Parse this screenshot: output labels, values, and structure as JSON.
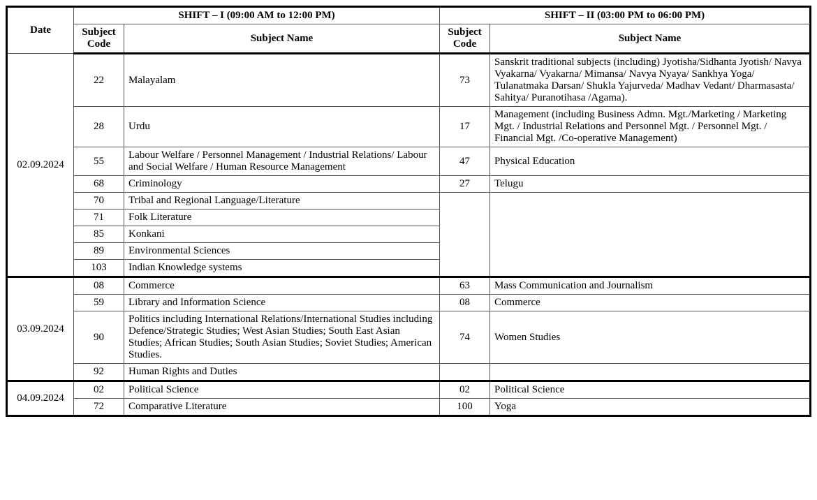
{
  "header": {
    "date": "Date",
    "shift1_title": "SHIFT – I (09:00 AM to 12:00 PM)",
    "shift2_title": "SHIFT – II (03:00 PM to 06:00 PM)",
    "subject_code": "Subject Code",
    "subject_name": "Subject Name"
  },
  "dates": {
    "d1": "02.09.2024",
    "d2": "03.09.2024",
    "d3": "04.09.2024"
  },
  "d1": {
    "r1": {
      "s1c": "22",
      "s1n": "Malayalam",
      "s2c": "73",
      "s2n": "Sanskrit traditional subjects (including) Jyotisha/Sidhanta Jyotish/ Navya Vyakarna/ Vyakarna/ Mimansa/ Navya Nyaya/ Sankhya Yoga/ Tulanatmaka Darsan/ Shukla Yajurveda/ Madhav Vedant/ Dharmasasta/ Sahitya/ Puranotihasa /Agama)."
    },
    "r2": {
      "s1c": "28",
      "s1n": "Urdu",
      "s2c": "17",
      "s2n": "Management (including Business Admn. Mgt./Marketing / Marketing Mgt. / Industrial Relations and Personnel Mgt. / Personnel Mgt. / Financial Mgt. /Co-operative Management)"
    },
    "r3": {
      "s1c": "55",
      "s1n": "Labour Welfare / Personnel Management / Industrial Relations/ Labour and Social Welfare / Human Resource Management",
      "s2c": "47",
      "s2n": "Physical Education"
    },
    "r4": {
      "s1c": "68",
      "s1n": "Criminology",
      "s2c": "27",
      "s2n": "Telugu"
    },
    "r5": {
      "s1c": "70",
      "s1n": "Tribal and Regional Language/Literature"
    },
    "r6": {
      "s1c": "71",
      "s1n": "Folk Literature"
    },
    "r7": {
      "s1c": "85",
      "s1n": "Konkani"
    },
    "r8": {
      "s1c": "89",
      "s1n": "Environmental Sciences"
    },
    "r9": {
      "s1c": "103",
      "s1n": "Indian Knowledge systems"
    }
  },
  "d2": {
    "r1": {
      "s1c": "08",
      "s1n": "Commerce",
      "s2c": "63",
      "s2n": "Mass Communication and Journalism"
    },
    "r2": {
      "s1c": "59",
      "s1n": "Library and Information Science",
      "s2c": "08",
      "s2n": "Commerce"
    },
    "r3": {
      "s1c": "90",
      "s1n": "Politics including International Relations/International Studies including Defence/Strategic Studies; West Asian Studies; South East Asian Studies; African Studies; South Asian Studies; Soviet Studies; American Studies.",
      "s2c": "74",
      "s2n": "Women Studies"
    },
    "r4": {
      "s1c": "92",
      "s1n": "Human Rights and Duties"
    }
  },
  "d3": {
    "r1": {
      "s1c": "02",
      "s1n": "Political Science",
      "s2c": "02",
      "s2n": "Political Science"
    },
    "r2": {
      "s1c": "72",
      "s1n": "Comparative Literature",
      "s2c": "100",
      "s2n": "Yoga"
    }
  }
}
